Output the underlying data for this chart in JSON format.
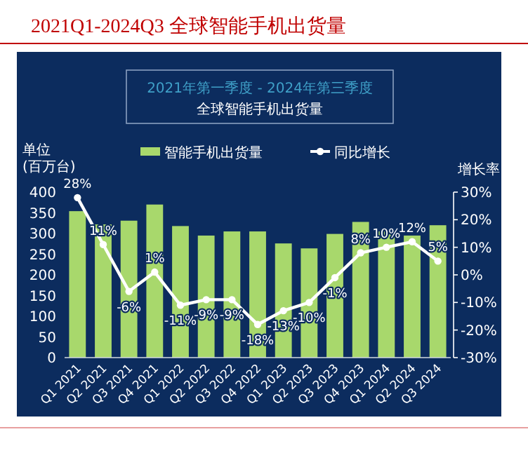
{
  "chart_data": {
    "type": "bar",
    "title": "2021Q1-2024Q3 全球智能手机出货量",
    "subtitle": "2021年第一季度 - 2024年第三季度",
    "annotations": [
      "全球智能手机出货量"
    ],
    "ylabel": "单位 (百万台)",
    "y2label": "增长率",
    "categories": [
      "Q1 2021",
      "Q2 2021",
      "Q3 2021",
      "Q4 2021",
      "Q1 2022",
      "Q2 2022",
      "Q3 2022",
      "Q4 2022",
      "Q1 2023",
      "Q2 2023",
      "Q3 2023",
      "Q4 2023",
      "Q1 2024",
      "Q2 2024",
      "Q3 2024"
    ],
    "series": [
      {
        "name": "智能手机出货量",
        "color": "#a8d86c",
        "values": [
          354,
          322,
          331,
          370,
          318,
          295,
          305,
          305,
          276,
          264,
          299,
          328,
          305,
          295,
          320
        ]
      },
      {
        "name": "同比增长",
        "type": "line",
        "axis": "y2",
        "color": "#ffffff",
        "marker": "circle",
        "values": [
          28,
          11,
          -6,
          1,
          -11,
          -9,
          -9,
          -18,
          -13,
          -10,
          -1,
          8,
          10,
          12,
          5
        ],
        "value_labels": [
          "28%",
          "11%",
          "-6%",
          "1%",
          "-11%",
          "-9%",
          "-9%",
          "-18%",
          "-13%",
          "-10%",
          "-1%",
          "8%",
          "10%",
          "12%",
          "5%"
        ]
      }
    ],
    "ylim": [
      0,
      400
    ],
    "yticks": [
      0,
      50,
      100,
      150,
      200,
      250,
      300,
      350,
      400
    ],
    "y2lim": [
      -30,
      30
    ],
    "y2ticks": [
      {
        "value": -30,
        "label": "-30%"
      },
      {
        "value": -20,
        "label": "-20%"
      },
      {
        "value": -10,
        "label": "-10%"
      },
      {
        "value": 0,
        "label": "0%"
      },
      {
        "value": 10,
        "label": "10%"
      },
      {
        "value": 20,
        "label": "20%"
      },
      {
        "value": 30,
        "label": "30%"
      }
    ],
    "legend": "top"
  }
}
